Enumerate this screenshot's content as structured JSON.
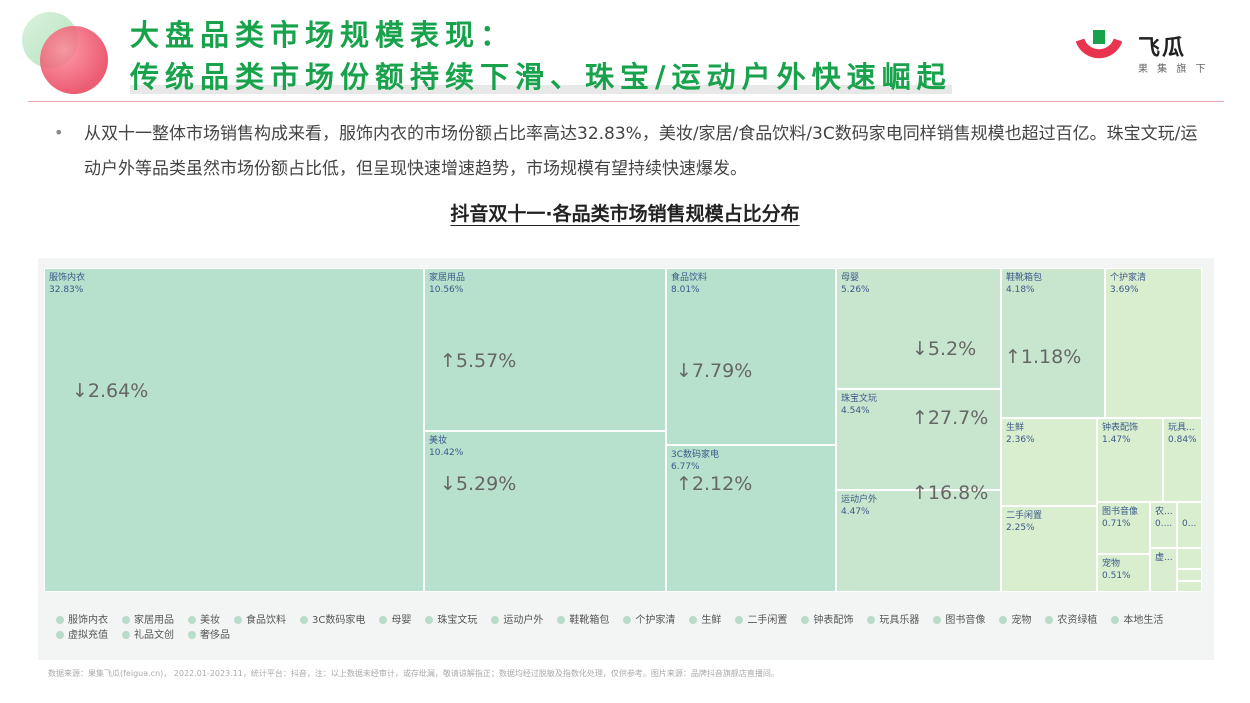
{
  "header": {
    "title_line1": "大盘品类市场规模表现：",
    "title_line2": "传统品类市场份额持续下滑、珠宝/运动户外快速崛起",
    "logo_name": "飞瓜",
    "logo_sub": "果 集 旗 下"
  },
  "summary": {
    "bullet": "•",
    "text": "从双十一整体市场销售构成来看，服饰内衣的市场份额占比率高达32.83%，美妆/家居/食品饮料/3C数码家电同样销售规模也超过百亿。珠宝文玩/运动户外等品类虽然市场份额占比低，但呈现快速增速趋势，市场规模有望持续快速爆发。"
  },
  "chart_title": "抖音双十一·各品类市场销售规模占比分布",
  "chart_data": {
    "type": "treemap",
    "title": "抖音双十一·各品类市场销售规模占比分布",
    "items": [
      {
        "name": "服饰内衣",
        "share": "32.83%",
        "change": "↓2.64%"
      },
      {
        "name": "家居用品",
        "share": "10.56%",
        "change": "↑5.57%"
      },
      {
        "name": "美妆",
        "share": "10.42%",
        "change": "↓5.29%"
      },
      {
        "name": "食品饮料",
        "share": "8.01%",
        "change": "↓7.79%"
      },
      {
        "name": "3C数码家电",
        "share": "6.77%",
        "change": "↑2.12%"
      },
      {
        "name": "母婴",
        "share": "5.26%",
        "change": "↓5.2%"
      },
      {
        "name": "珠宝文玩",
        "share": "4.54%",
        "change": "↑27.7%"
      },
      {
        "name": "运动户外",
        "share": "4.47%",
        "change": "↑16.8%"
      },
      {
        "name": "鞋靴箱包",
        "share": "4.18%",
        "change": "↑1.18%"
      },
      {
        "name": "个护家清",
        "share": "3.69%",
        "change": ""
      },
      {
        "name": "生鲜",
        "share": "2.36%",
        "change": ""
      },
      {
        "name": "二手闲置",
        "share": "2.25%",
        "change": ""
      },
      {
        "name": "钟表配饰",
        "share": "1.47%",
        "change": ""
      },
      {
        "name": "玩具...",
        "share": "0.84%",
        "change": ""
      },
      {
        "name": "图书音像",
        "share": "0.71%",
        "change": ""
      },
      {
        "name": "农...",
        "share": "0....",
        "change": ""
      },
      {
        "name": "",
        "share": "0...",
        "change": ""
      },
      {
        "name": "宠物",
        "share": "0.51%",
        "change": ""
      },
      {
        "name": "虚...",
        "share": "",
        "change": ""
      },
      {
        "name": "",
        "share": "",
        "change": ""
      },
      {
        "name": "",
        "share": "",
        "change": ""
      },
      {
        "name": "",
        "share": "",
        "change": ""
      }
    ],
    "legend": [
      "服饰内衣",
      "家居用品",
      "美妆",
      "食品饮料",
      "3C数码家电",
      "母婴",
      "珠宝文玩",
      "运动户外",
      "鞋靴箱包",
      "个护家清",
      "生鲜",
      "二手闲置",
      "钟表配饰",
      "玩具乐器",
      "图书音像",
      "宠物",
      "农资绿植",
      "本地生活",
      "虚拟充值",
      "礼品文创",
      "奢侈品"
    ]
  },
  "colors": {
    "cell_fill": "#b7e0cd",
    "cell_fill_light": "#c8e6cd",
    "cell_fill_pale": "#d9edcf",
    "legend_dot": "#b9dcc9"
  },
  "footer": "数据来源：果集飞瓜(feigua.cn)， 2022.01-2023.11，统计平台：抖音，注：以上数据未经审计，或存纰漏，敬请谅解指正；数据均经过脱敏及指数化处理，仅供参考。图片来源：品牌抖音旗舰店直播间。"
}
